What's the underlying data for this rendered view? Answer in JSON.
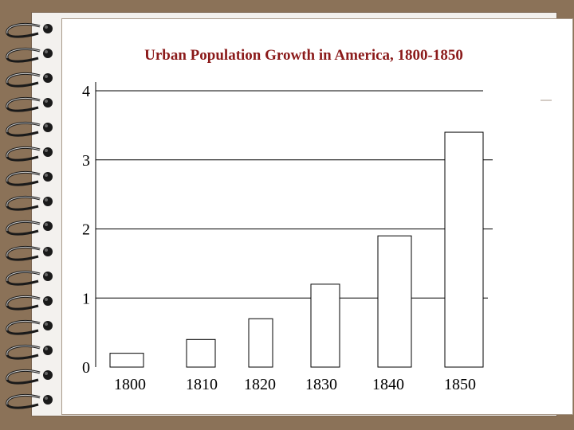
{
  "colors": {
    "background": "#8b7258",
    "slide": "#ffffff",
    "title": "#8b1a1a",
    "bar_fill": "#ffffff",
    "bar_stroke": "#000000",
    "gridline": "#000000"
  },
  "decoration": {
    "binder": "spiral-binding-rings"
  },
  "chart_data": {
    "type": "bar",
    "title": "Urban Population Growth in America, 1800-1850",
    "xlabel": "",
    "ylabel": "",
    "categories": [
      "1800",
      "1810",
      "1820",
      "1830",
      "1840",
      "1850"
    ],
    "values": [
      0.2,
      0.4,
      0.7,
      1.2,
      1.9,
      3.4
    ],
    "ylim": [
      0,
      4
    ],
    "yticks": [
      "0",
      "1",
      "2",
      "3",
      "4"
    ],
    "grid": true,
    "legend": "none"
  }
}
